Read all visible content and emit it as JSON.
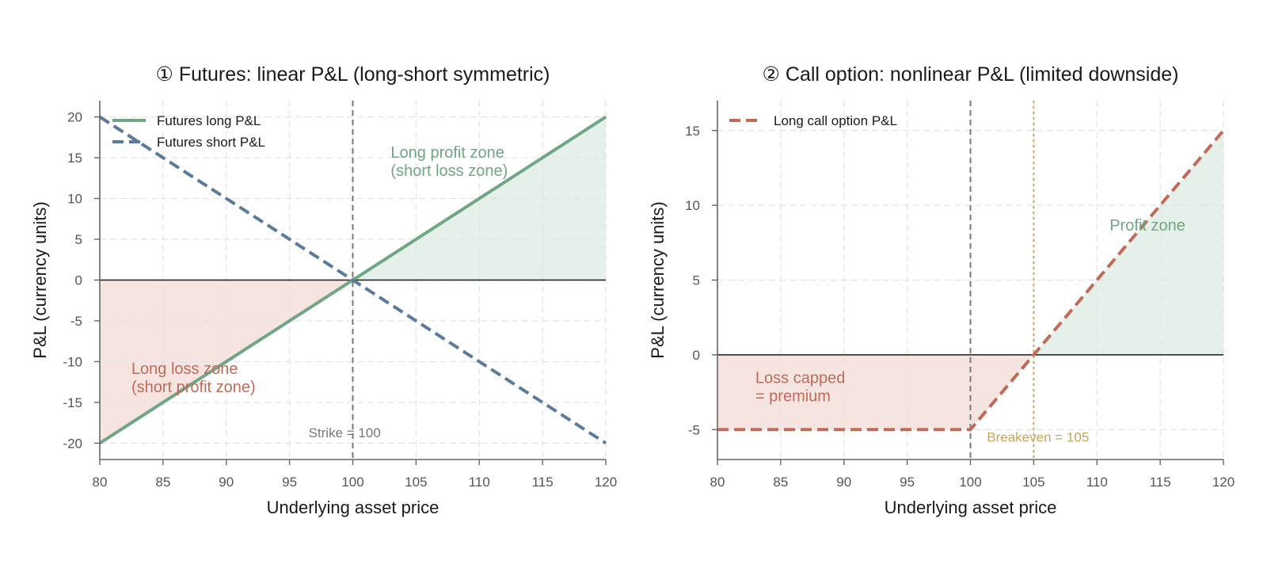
{
  "colors": {
    "long": "#6fa683",
    "short": "#5b7b9c",
    "call": "#bf6b58",
    "profit_fill": "#e6f0ea",
    "loss_fill": "#f6e4e0",
    "profit_text": "#6fa683",
    "loss_text": "#bf6b58",
    "strike_line": "#777777",
    "breakeven": "#c9a55b",
    "grid": "#e3e3e3",
    "zero_line": "#1a1a1a"
  },
  "chart_data": [
    {
      "type": "line",
      "title": "① Futures: linear P&L (long-short symmetric)",
      "xlabel": "Underlying asset price",
      "ylabel": "P&L (currency units)",
      "xlim": [
        80,
        120
      ],
      "ylim": [
        -22,
        22
      ],
      "xticks": [
        80,
        85,
        90,
        95,
        100,
        105,
        110,
        115,
        120
      ],
      "yticks": [
        -20,
        -15,
        -10,
        -5,
        0,
        5,
        10,
        15,
        20
      ],
      "grid": true,
      "legend": "top-left",
      "series": [
        {
          "name": "Futures long P&L",
          "style": "solid",
          "color_key": "long",
          "x": [
            80,
            120
          ],
          "y": [
            -20,
            20
          ]
        },
        {
          "name": "Futures short P&L",
          "style": "dashed",
          "color_key": "short",
          "x": [
            80,
            120
          ],
          "y": [
            20,
            -20
          ]
        }
      ],
      "regions": [
        {
          "kind": "profit",
          "polygon": [
            [
              100,
              0
            ],
            [
              120,
              0
            ],
            [
              120,
              20
            ]
          ]
        },
        {
          "kind": "loss",
          "polygon": [
            [
              80,
              0
            ],
            [
              100,
              0
            ],
            [
              80,
              -20
            ]
          ]
        }
      ],
      "vlines": [
        {
          "x": 100,
          "style": "dashed",
          "color_key": "strike_line"
        }
      ],
      "annotations": [
        {
          "lines": [
            "Long profit zone",
            "(short loss zone)"
          ],
          "x": 103,
          "y": 15,
          "color_key": "profit_text",
          "size": "normal"
        },
        {
          "lines": [
            "Long loss zone",
            "(short profit zone)"
          ],
          "x": 82.5,
          "y": -11.5,
          "color_key": "loss_text",
          "size": "normal"
        },
        {
          "lines": [
            "Strike = 100"
          ],
          "x": 96.5,
          "y": -19.3,
          "color_key": "strike_line",
          "size": "small"
        }
      ]
    },
    {
      "type": "line",
      "title": "② Call option: nonlinear P&L (limited downside)",
      "xlabel": "Underlying asset price",
      "ylabel": "P&L (currency units)",
      "xlim": [
        80,
        120
      ],
      "ylim": [
        -7,
        17
      ],
      "xticks": [
        80,
        85,
        90,
        95,
        100,
        105,
        110,
        115,
        120
      ],
      "yticks": [
        -5,
        0,
        5,
        10,
        15
      ],
      "grid": true,
      "legend": "top-left",
      "series": [
        {
          "name": "Long call option P&L",
          "style": "dashed",
          "color_key": "call",
          "x": [
            80,
            100,
            120
          ],
          "y": [
            -5,
            -5,
            15
          ]
        }
      ],
      "regions": [
        {
          "kind": "profit",
          "polygon": [
            [
              105,
              0
            ],
            [
              120,
              0
            ],
            [
              120,
              15
            ]
          ]
        },
        {
          "kind": "loss",
          "polygon": [
            [
              80,
              0
            ],
            [
              105,
              0
            ],
            [
              100,
              -5
            ],
            [
              80,
              -5
            ]
          ]
        }
      ],
      "vlines": [
        {
          "x": 100,
          "style": "dashed",
          "color_key": "strike_line"
        },
        {
          "x": 105,
          "style": "dotted",
          "color_key": "breakeven"
        }
      ],
      "annotations": [
        {
          "lines": [
            "Loss capped",
            "= premium"
          ],
          "x": 83,
          "y": -1.9,
          "color_key": "loss_text",
          "size": "normal"
        },
        {
          "lines": [
            "Profit zone"
          ],
          "x": 111,
          "y": 8.3,
          "color_key": "profit_text",
          "size": "normal"
        },
        {
          "lines": [
            "Breakeven = 105"
          ],
          "x": 101.3,
          "y": -5.8,
          "color_key": "breakeven",
          "size": "small"
        }
      ]
    }
  ]
}
